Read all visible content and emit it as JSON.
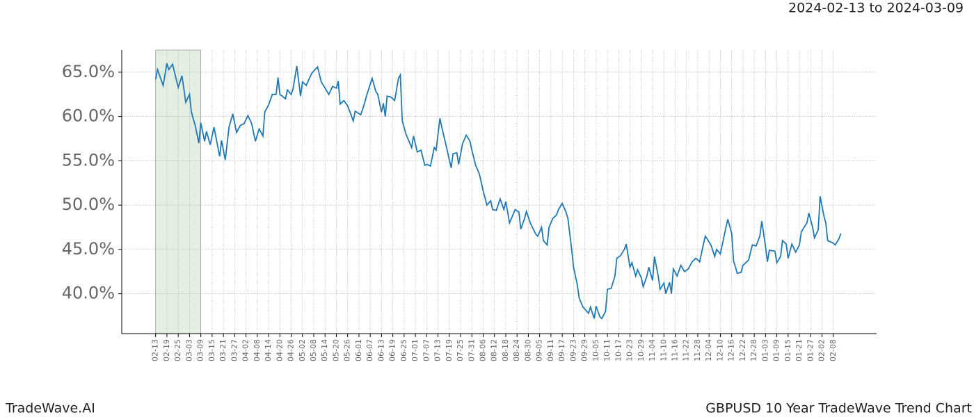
{
  "chart_data": {
    "type": "line",
    "title": "GBPUSD 10 Year TradeWave Trend Chart",
    "range_label": "2024-02-13 to 2024-03-09",
    "brand": "TradeWave.AI",
    "highlight": [
      0,
      24
    ],
    "highlight_color": "#c8e0c8",
    "grid": true,
    "xlim": [
      -18,
      383
    ],
    "ylim": [
      35.5,
      67.5
    ],
    "yticks": [
      {
        "value": 40,
        "label": "40.0%"
      },
      {
        "value": 45,
        "label": "45.0%"
      },
      {
        "value": 50,
        "label": "50.0%"
      },
      {
        "value": 55,
        "label": "55.0%"
      },
      {
        "value": 60,
        "label": "60.0%"
      },
      {
        "value": 65,
        "label": "65.0%"
      }
    ],
    "xticks": [
      {
        "value": 0,
        "label": "02-13"
      },
      {
        "value": 6,
        "label": "02-19"
      },
      {
        "value": 12,
        "label": "02-25"
      },
      {
        "value": 18,
        "label": "03-03"
      },
      {
        "value": 24,
        "label": "03-09"
      },
      {
        "value": 30,
        "label": "03-15"
      },
      {
        "value": 36,
        "label": "03-21"
      },
      {
        "value": 42,
        "label": "03-27"
      },
      {
        "value": 48,
        "label": "04-02"
      },
      {
        "value": 54,
        "label": "04-08"
      },
      {
        "value": 60,
        "label": "04-14"
      },
      {
        "value": 66,
        "label": "04-20"
      },
      {
        "value": 72,
        "label": "04-26"
      },
      {
        "value": 78,
        "label": "05-02"
      },
      {
        "value": 84,
        "label": "05-08"
      },
      {
        "value": 90,
        "label": "05-14"
      },
      {
        "value": 96,
        "label": "05-20"
      },
      {
        "value": 102,
        "label": "05-26"
      },
      {
        "value": 108,
        "label": "06-01"
      },
      {
        "value": 114,
        "label": "06-07"
      },
      {
        "value": 120,
        "label": "06-13"
      },
      {
        "value": 126,
        "label": "06-19"
      },
      {
        "value": 132,
        "label": "06-25"
      },
      {
        "value": 138,
        "label": "07-01"
      },
      {
        "value": 144,
        "label": "07-07"
      },
      {
        "value": 150,
        "label": "07-13"
      },
      {
        "value": 156,
        "label": "07-19"
      },
      {
        "value": 162,
        "label": "07-25"
      },
      {
        "value": 168,
        "label": "07-31"
      },
      {
        "value": 174,
        "label": "08-06"
      },
      {
        "value": 180,
        "label": "08-12"
      },
      {
        "value": 186,
        "label": "08-18"
      },
      {
        "value": 192,
        "label": "08-24"
      },
      {
        "value": 198,
        "label": "08-30"
      },
      {
        "value": 204,
        "label": "09-05"
      },
      {
        "value": 210,
        "label": "09-11"
      },
      {
        "value": 216,
        "label": "09-17"
      },
      {
        "value": 222,
        "label": "09-23"
      },
      {
        "value": 228,
        "label": "09-29"
      },
      {
        "value": 234,
        "label": "10-05"
      },
      {
        "value": 240,
        "label": "10-11"
      },
      {
        "value": 246,
        "label": "10-17"
      },
      {
        "value": 252,
        "label": "10-23"
      },
      {
        "value": 258,
        "label": "10-29"
      },
      {
        "value": 264,
        "label": "11-04"
      },
      {
        "value": 270,
        "label": "11-10"
      },
      {
        "value": 276,
        "label": "11-16"
      },
      {
        "value": 282,
        "label": "11-22"
      },
      {
        "value": 288,
        "label": "11-28"
      },
      {
        "value": 294,
        "label": "12-04"
      },
      {
        "value": 300,
        "label": "12-10"
      },
      {
        "value": 306,
        "label": "12-16"
      },
      {
        "value": 312,
        "label": "12-22"
      },
      {
        "value": 318,
        "label": "12-28"
      },
      {
        "value": 324,
        "label": "01-03"
      },
      {
        "value": 330,
        "label": "01-09"
      },
      {
        "value": 336,
        "label": "01-15"
      },
      {
        "value": 342,
        "label": "01-21"
      },
      {
        "value": 348,
        "label": "01-27"
      },
      {
        "value": 354,
        "label": "02-02"
      },
      {
        "value": 360,
        "label": "02-08"
      }
    ],
    "series": [
      {
        "name": "GBPUSD",
        "color": "#1f77b4",
        "x": [
          0,
          1,
          4,
          6,
          7,
          9,
          10,
          12,
          14,
          16,
          18,
          19,
          21,
          23,
          24,
          26,
          27,
          29,
          31,
          34,
          35,
          37,
          39,
          41,
          43,
          45,
          47,
          49,
          51,
          53,
          55,
          57,
          58,
          60,
          62,
          64,
          65,
          66,
          69,
          70,
          72,
          73,
          75,
          77,
          78,
          80,
          81,
          83,
          86,
          88,
          90,
          92,
          94,
          96,
          97,
          98,
          100,
          102,
          105,
          106,
          109,
          111,
          112,
          115,
          117,
          118,
          120,
          121,
          122,
          123,
          125,
          127,
          129,
          130,
          131,
          133,
          136,
          137,
          139,
          141,
          143,
          144,
          146,
          148,
          149,
          151,
          152,
          154,
          157,
          158,
          160,
          161,
          163,
          165,
          167,
          168,
          170,
          172,
          174,
          176,
          178,
          179,
          181,
          183,
          185,
          186,
          188,
          189,
          191,
          193,
          194,
          196,
          197,
          199,
          202,
          203,
          205,
          206,
          208,
          209,
          211,
          213,
          214,
          216,
          218,
          219,
          221,
          222,
          224,
          225,
          227,
          230,
          231,
          233,
          234,
          236,
          237,
          239,
          240,
          242,
          244,
          245,
          247,
          249,
          250,
          252,
          253,
          255,
          256,
          258,
          259,
          261,
          262,
          264,
          265,
          267,
          268,
          270,
          271,
          273,
          274,
          275,
          277,
          279,
          281,
          283,
          285,
          287,
          289,
          291,
          292,
          295,
          297,
          298,
          300,
          301,
          303,
          304,
          306,
          307,
          309,
          311,
          312,
          315,
          317,
          319,
          321,
          322,
          324,
          325,
          326,
          329,
          330,
          332,
          333,
          335,
          336,
          338,
          340,
          342,
          343,
          346,
          347,
          349,
          350,
          352,
          353,
          355,
          356,
          357,
          360,
          361,
          363,
          364
        ],
        "values": [
          64.2,
          65.3,
          63.5,
          66.0,
          65.3,
          65.9,
          65.0,
          63.3,
          64.6,
          61.6,
          62.5,
          60.5,
          59.0,
          57.0,
          59.3,
          57.2,
          58.3,
          56.8,
          58.8,
          55.5,
          57.3,
          55.1,
          58.8,
          60.3,
          58.2,
          59.0,
          59.2,
          60.1,
          59.2,
          57.2,
          58.6,
          57.8,
          60.5,
          61.3,
          62.5,
          62.5,
          64.4,
          62.5,
          62.0,
          63.0,
          62.5,
          63.1,
          65.7,
          62.3,
          63.9,
          63.5,
          64.0,
          64.9,
          65.6,
          63.9,
          63.2,
          62.5,
          63.4,
          63.2,
          64.0,
          61.4,
          61.8,
          61.2,
          59.5,
          60.6,
          60.2,
          61.5,
          62.3,
          64.3,
          62.8,
          62.5,
          60.5,
          61.5,
          60.0,
          62.3,
          62.2,
          61.8,
          64.3,
          64.7,
          59.5,
          58.0,
          56.5,
          57.8,
          56.0,
          56.2,
          54.5,
          54.6,
          54.4,
          56.5,
          56.2,
          59.8,
          58.8,
          57.0,
          54.2,
          55.8,
          55.9,
          54.6,
          56.9,
          57.9,
          57.2,
          56.2,
          54.5,
          53.5,
          51.6,
          50.0,
          50.5,
          49.5,
          49.4,
          50.7,
          49.5,
          50.4,
          48.0,
          48.5,
          49.5,
          49.2,
          47.3,
          48.5,
          49.3,
          48.0,
          46.7,
          46.5,
          47.5,
          46.0,
          45.5,
          47.5,
          48.5,
          48.9,
          49.5,
          50.2,
          49.2,
          48.5,
          45.0,
          43.0,
          41.0,
          39.5,
          38.5,
          37.8,
          38.5,
          37.2,
          38.6,
          37.4,
          37.2,
          38.0,
          40.5,
          40.6,
          42.0,
          44.0,
          44.3,
          45.0,
          45.6,
          43.0,
          43.5,
          42.0,
          42.7,
          41.8,
          40.8,
          42.0,
          43.0,
          41.5,
          44.2,
          42.0,
          40.5,
          41.2,
          40.0,
          41.3,
          40.0,
          42.8,
          42.0,
          43.2,
          42.5,
          42.8,
          43.6,
          44.0,
          43.6,
          45.6,
          46.5,
          45.5,
          44.2,
          45.0,
          44.5,
          45.5,
          47.5,
          48.4,
          46.8,
          43.7,
          42.3,
          42.4,
          43.2,
          43.8,
          45.5,
          45.4,
          46.5,
          48.2,
          45.3,
          43.6,
          44.9,
          44.8,
          43.5,
          44.2,
          46.0,
          45.6,
          44.0,
          45.6,
          44.7,
          45.5,
          47.0,
          48.0,
          49.1,
          47.5,
          46.3,
          47.2,
          51.0,
          48.8,
          48.0,
          46.0,
          45.7,
          45.5,
          46.2,
          46.8
        ]
      }
    ]
  }
}
